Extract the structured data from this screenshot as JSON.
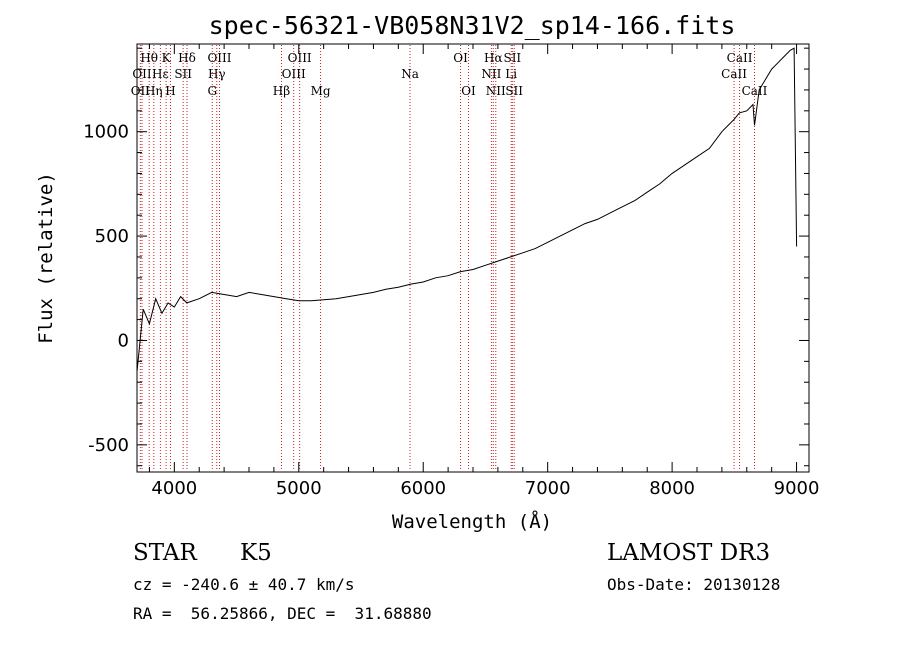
{
  "chart_data": {
    "type": "line",
    "title": "spec-56321-VB058N31V2_sp14-166.fits",
    "xlabel": "Wavelength (Å)",
    "ylabel": "Flux (relative)",
    "xlim": [
      3700,
      9100
    ],
    "ylim": [
      -630,
      1420
    ],
    "xticks": [
      4000,
      5000,
      6000,
      7000,
      8000,
      9000
    ],
    "yticks": [
      -500,
      0,
      500,
      1000
    ],
    "series": [
      {
        "name": "spectrum",
        "x": [
          3700,
          3750,
          3800,
          3850,
          3900,
          3950,
          4000,
          4050,
          4100,
          4200,
          4300,
          4400,
          4500,
          4600,
          4700,
          4800,
          4900,
          5000,
          5100,
          5200,
          5300,
          5400,
          5500,
          5600,
          5700,
          5800,
          5900,
          6000,
          6100,
          6200,
          6300,
          6400,
          6500,
          6600,
          6700,
          6800,
          6900,
          7000,
          7100,
          7200,
          7300,
          7400,
          7500,
          7600,
          7700,
          7800,
          7900,
          8000,
          8100,
          8200,
          8300,
          8400,
          8450,
          8500,
          8540,
          8600,
          8650,
          8662,
          8700,
          8750,
          8800,
          8850,
          8900,
          8950,
          8980,
          9000
        ],
        "y": [
          -150,
          150,
          80,
          200,
          130,
          180,
          160,
          210,
          180,
          200,
          230,
          220,
          210,
          230,
          220,
          210,
          200,
          190,
          190,
          195,
          200,
          210,
          220,
          230,
          245,
          255,
          270,
          280,
          300,
          310,
          330,
          340,
          360,
          380,
          400,
          420,
          440,
          470,
          500,
          530,
          560,
          580,
          610,
          640,
          670,
          710,
          750,
          800,
          840,
          880,
          920,
          1000,
          1030,
          1060,
          1090,
          1100,
          1130,
          1030,
          1200,
          1250,
          1300,
          1330,
          1360,
          1390,
          1400,
          450
        ]
      }
    ],
    "lines": [
      {
        "name": "OII",
        "x": 3727,
        "row": 3
      },
      {
        "name": "OII",
        "x": 3740,
        "row": 2
      },
      {
        "name": "Hθ",
        "x": 3798,
        "row": 1
      },
      {
        "name": "Hη",
        "x": 3835,
        "row": 3
      },
      {
        "name": "Hε",
        "x": 3888,
        "row": 2
      },
      {
        "name": "K",
        "x": 3934,
        "row": 1
      },
      {
        "name": "H",
        "x": 3969,
        "row": 3
      },
      {
        "name": "SII",
        "x": 4071,
        "row": 2
      },
      {
        "name": "Hδ",
        "x": 4102,
        "row": 1
      },
      {
        "name": "G",
        "x": 4305,
        "row": 3
      },
      {
        "name": "Hγ",
        "x": 4341,
        "row": 2
      },
      {
        "name": "OIII",
        "x": 4363,
        "row": 1
      },
      {
        "name": "Hβ",
        "x": 4861,
        "row": 3
      },
      {
        "name": "OIII",
        "x": 4959,
        "row": 2
      },
      {
        "name": "OIII",
        "x": 5007,
        "row": 1
      },
      {
        "name": "Mg",
        "x": 5175,
        "row": 3
      },
      {
        "name": "Na",
        "x": 5894,
        "row": 2
      },
      {
        "name": "OI",
        "x": 6300,
        "row": 1
      },
      {
        "name": "OI",
        "x": 6364,
        "row": 3
      },
      {
        "name": "NII",
        "x": 6548,
        "row": 2
      },
      {
        "name": "Hα",
        "x": 6563,
        "row": 1
      },
      {
        "name": "NII",
        "x": 6583,
        "row": 3
      },
      {
        "name": "Li",
        "x": 6707,
        "row": 2
      },
      {
        "name": "SII",
        "x": 6716,
        "row": 1
      },
      {
        "name": "SII",
        "x": 6731,
        "row": 3
      },
      {
        "name": "CaII",
        "x": 8498,
        "row": 2
      },
      {
        "name": "CaII",
        "x": 8542,
        "row": 1
      },
      {
        "name": "CaII",
        "x": 8662,
        "row": 3
      }
    ]
  },
  "info": {
    "class": "STAR",
    "subclass": "K5",
    "survey": "LAMOST DR3",
    "cz": "cz = -240.6 ± 40.7 km/s",
    "obs_date": "Obs-Date: 20130128",
    "coords": "RA =  56.25866, DEC =  31.68880"
  },
  "colors": {
    "line_marker": "#cc2222",
    "spectrum": "#000000",
    "axis": "#000000"
  }
}
